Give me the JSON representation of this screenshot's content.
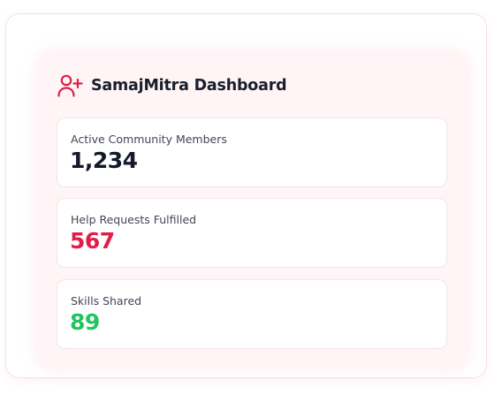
{
  "header": {
    "title": "SamajMitra Dashboard",
    "icon": "user-plus-icon",
    "icon_color": "#e11d48"
  },
  "stats": [
    {
      "label": "Active Community Members",
      "value": "1,234",
      "color": "#141a2b"
    },
    {
      "label": "Help Requests Fulfilled",
      "value": "567",
      "color": "#e11d48"
    },
    {
      "label": "Skills Shared",
      "value": "89",
      "color": "#22c55e"
    }
  ]
}
